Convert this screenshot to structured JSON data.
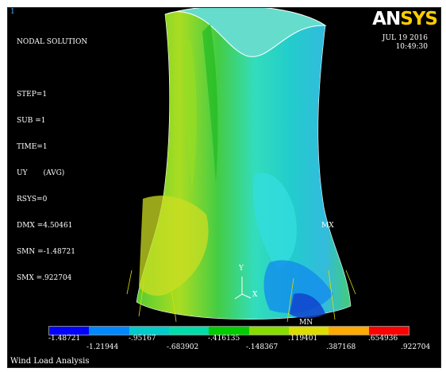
{
  "window": {
    "number": "1"
  },
  "plot_info": {
    "lines": [
      "NODAL SOLUTION",
      "",
      "STEP=1",
      "SUB =1",
      "TIME=1",
      "UY       (AVG)",
      "RSYS=0",
      "DMX =4.50461",
      "SMN =-1.48721",
      "SMX =.922704"
    ]
  },
  "logo": {
    "part1": "AN",
    "part2": "SYS"
  },
  "timestamp": {
    "date": "JUL 19 2016",
    "time": "10:49:30"
  },
  "markers": {
    "max": "MX",
    "min": "MN"
  },
  "axes": {
    "x": "X",
    "y": "Y"
  },
  "legend": {
    "colors": [
      "#0000ff",
      "#0088ff",
      "#00cccc",
      "#00ddaa",
      "#00cc00",
      "#88dd00",
      "#dddd00",
      "#ffaa00",
      "#ff0000"
    ],
    "top_labels": [
      "-1.48721",
      "-.95167",
      "-.416135",
      ".119401",
      ".654936"
    ],
    "bottom_labels": [
      "-1.21944",
      "-.683902",
      "-.148367",
      ".387168",
      ".922704"
    ]
  },
  "plot_title": "Wind Load Analysis"
}
